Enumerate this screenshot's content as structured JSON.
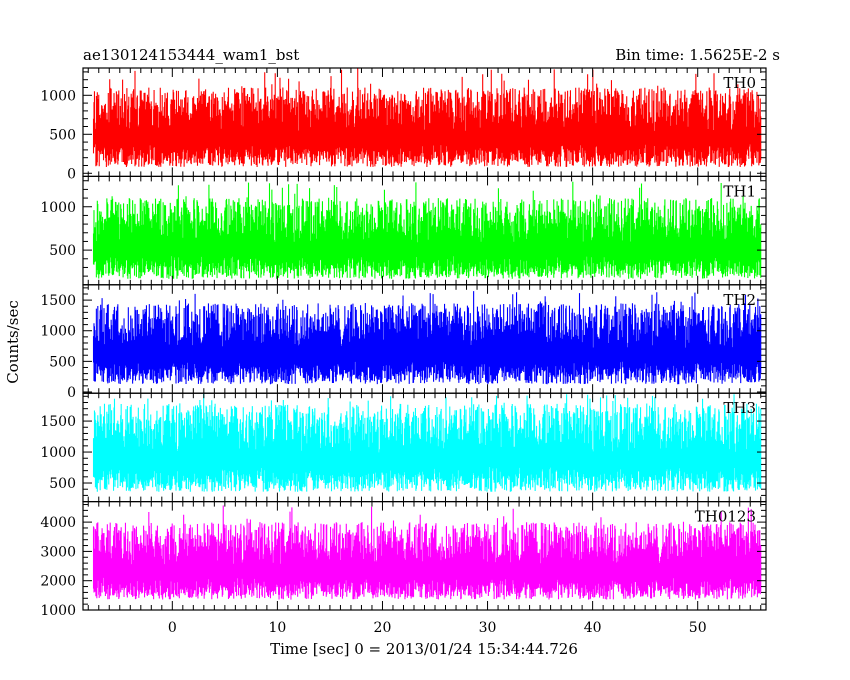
{
  "header": {
    "title": "ae130124153444_wam1_bst",
    "bin_time": "Bin time: 1.5625E-2 s"
  },
  "chart_data": {
    "type": "line",
    "title": "ae130124153444_wam1_bst",
    "xlabel": "Time [sec] 0 = 2013/01/24 15:34:44.726",
    "ylabel": "Counts/sec",
    "xlim": [
      -8.5,
      56.5
    ],
    "data_x_range": [
      -7.5,
      56.0
    ],
    "x_ticks": [
      0,
      10,
      20,
      30,
      40,
      50
    ],
    "x_tick_labels": [
      "0",
      "10",
      "20",
      "30",
      "40",
      "50"
    ],
    "grid": false,
    "series": [
      {
        "name": "TH0",
        "color": "#ff0000",
        "ylim": [
          -40,
          1350
        ],
        "y_ticks": [
          0,
          500,
          1000
        ],
        "y_tick_labels": [
          "0",
          "500",
          "1000"
        ],
        "typical_range": [
          60,
          1100
        ],
        "peak": 1350
      },
      {
        "name": "TH1",
        "color": "#00ff00",
        "ylim": [
          100,
          1350
        ],
        "y_ticks": [
          500,
          1000
        ],
        "y_tick_labels": [
          "500",
          "1000"
        ],
        "typical_range": [
          150,
          1100
        ],
        "peak": 1300
      },
      {
        "name": "TH2",
        "color": "#0000ff",
        "ylim": [
          -20,
          1750
        ],
        "y_ticks": [
          0,
          500,
          1000,
          1500
        ],
        "y_tick_labels": [
          "0",
          "500",
          "1000",
          "1500"
        ],
        "typical_range": [
          100,
          1450
        ],
        "peak": 1650
      },
      {
        "name": "TH3",
        "color": "#00ffff",
        "ylim": [
          200,
          1950
        ],
        "y_ticks": [
          500,
          1000,
          1500
        ],
        "y_tick_labels": [
          "500",
          "1000",
          "1500"
        ],
        "typical_range": [
          330,
          1780
        ],
        "peak": 1950
      },
      {
        "name": "TH0123",
        "color": "#ff00ff",
        "ylim": [
          1000,
          4700
        ],
        "y_ticks": [
          1000,
          2000,
          3000,
          4000
        ],
        "y_tick_labels": [
          "1000",
          "2000",
          "3000",
          "4000"
        ],
        "typical_range": [
          1300,
          4000
        ],
        "peak": 4600
      }
    ]
  }
}
